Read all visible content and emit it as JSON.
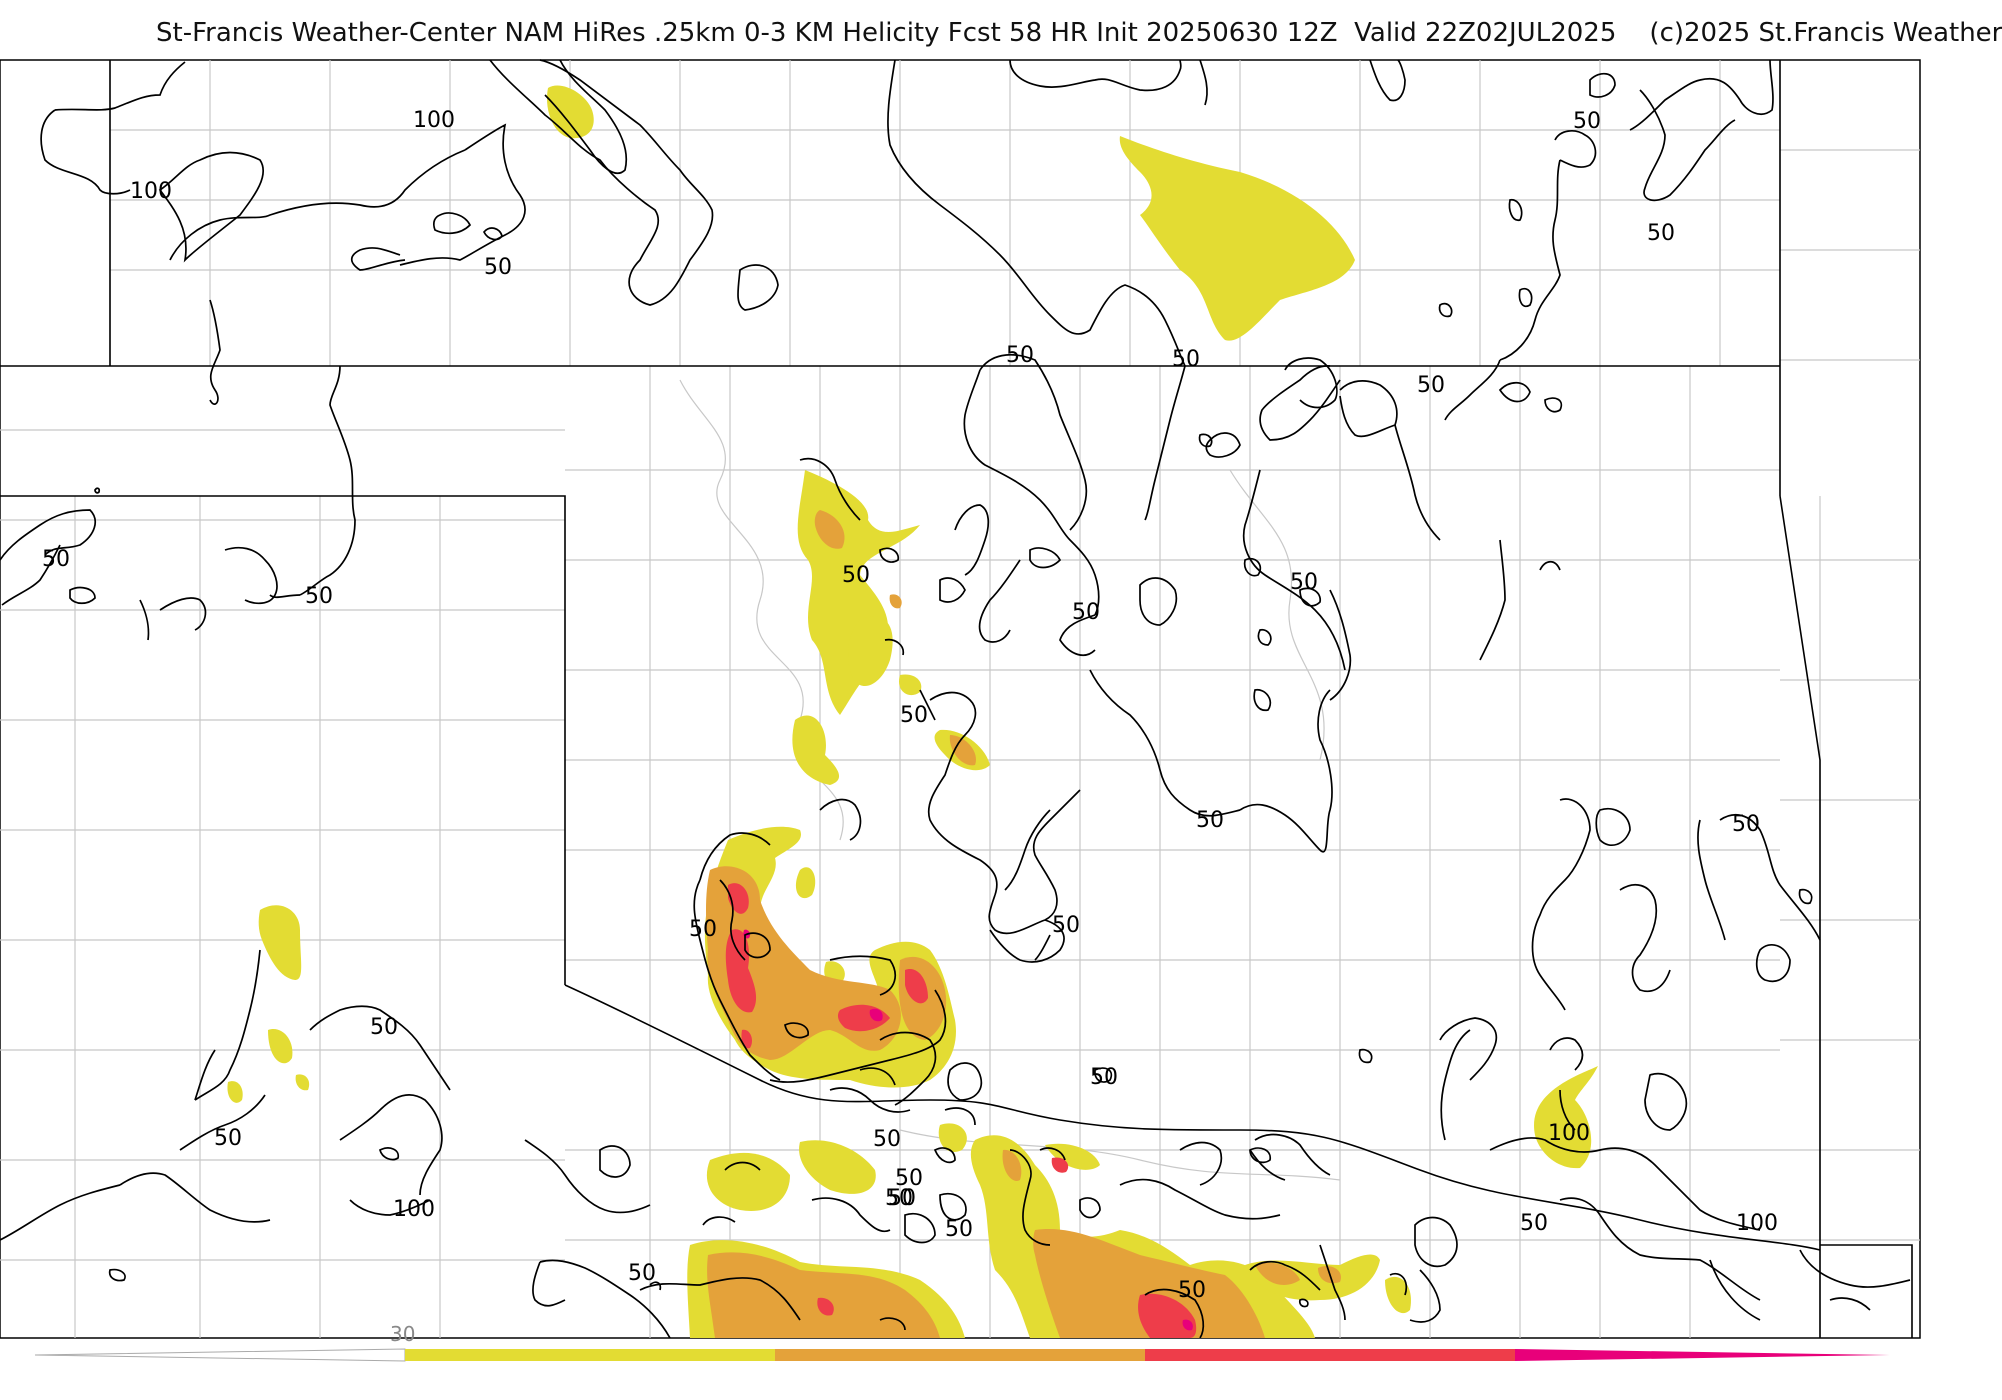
{
  "title": "St-Francis Weather-Center NAM HiRes .25km 0-3 KM Helicity Fcst 58 HR Init 20250630 12Z  Valid 22Z02JUL2025    (c)2025 St.Francis Weather",
  "colors": {
    "yellow": "#e3dc33",
    "orange": "#e4a23a",
    "red": "#ee3d4a",
    "magenta": "#e8007a",
    "contour": "#000000",
    "county_lines": "#c8c8c8",
    "background": "#ffffff"
  },
  "contour_labels": [
    "100",
    "100",
    "50",
    "50",
    "50",
    "50",
    "50",
    "50",
    "50",
    "50",
    "50",
    "50",
    "50",
    "50",
    "50",
    "50",
    "50",
    "50",
    "50",
    "50",
    "50",
    "50",
    "100",
    "50",
    "100",
    "50",
    "50",
    "50",
    "50",
    "50",
    "100",
    "50"
  ],
  "color_scale": {
    "label": "30"
  }
}
